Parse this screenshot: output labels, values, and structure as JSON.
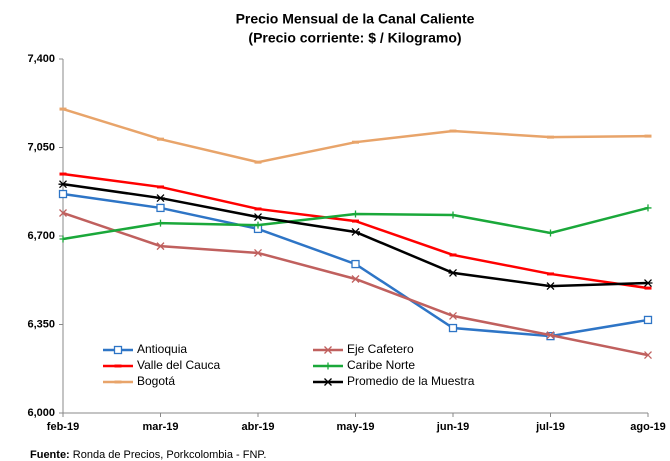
{
  "chart_data": {
    "type": "line",
    "title": "Precio Mensual de la Canal Caliente",
    "subtitle": "(Precio corriente: $ / Kilogramo)",
    "categories": [
      "feb-19",
      "mar-19",
      "abr-19",
      "may-19",
      "jun-19",
      "jul-19",
      "ago-19"
    ],
    "series": [
      {
        "name": "Antioquia",
        "color": "#2e75c6",
        "marker": "square",
        "values": [
          6866,
          6811,
          6728,
          6589,
          6336,
          6304,
          6368
        ]
      },
      {
        "name": "Eje Cafetero",
        "color": "#c0605e",
        "marker": "x",
        "values": [
          6791,
          6660,
          6633,
          6530,
          6384,
          6308,
          6229
        ]
      },
      {
        "name": "Valle del Cauca",
        "color": "#ff0000",
        "marker": "dash",
        "values": [
          6945,
          6894,
          6807,
          6759,
          6625,
          6550,
          6494
        ]
      },
      {
        "name": "Caribe Norte",
        "color": "#1aa83a",
        "marker": "plus",
        "values": [
          6688,
          6751,
          6743,
          6787,
          6783,
          6712,
          6811
        ]
      },
      {
        "name": "Bogotá",
        "color": "#e8a46a",
        "marker": "dash",
        "values": [
          7202,
          7083,
          6992,
          7071,
          7115,
          7091,
          7095
        ]
      },
      {
        "name": "Promedio de la Muestra",
        "color": "#000000",
        "marker": "star",
        "values": [
          6905,
          6850,
          6775,
          6716,
          6554,
          6502,
          6514
        ]
      }
    ],
    "ylim": [
      6000,
      7400
    ],
    "yticks": [
      {
        "value": 6000,
        "label": "6,000"
      },
      {
        "value": 6350,
        "label": "6,350"
      },
      {
        "value": 6700,
        "label": "6,700"
      },
      {
        "value": 7050,
        "label": "7,050"
      },
      {
        "value": 7400,
        "label": "7,400"
      }
    ],
    "grid": false,
    "legend": "bottom-left",
    "source": {
      "label": "Fuente:",
      "text": "Ronda de Precios, Porkcolombia  - FNP."
    }
  }
}
